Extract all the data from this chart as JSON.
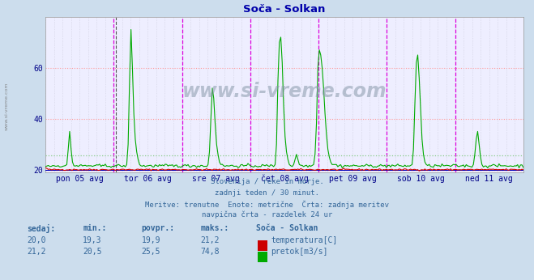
{
  "title": "Soča - Solkan",
  "bg_color": "#ccdded",
  "plot_bg_color": "#eeeeff",
  "grid_color_h": "#ff9999",
  "grid_color_v": "#ccccdd",
  "vline_color_magenta": "#dd00dd",
  "vline_color_black": "#555555",
  "tick_label_color": "#000088",
  "title_color": "#0000aa",
  "text_color": "#336699",
  "watermark_color": "#aabbcc",
  "temp_color": "#cc0000",
  "flow_color": "#00aa00",
  "temp_avg_color": "#ff8888",
  "flow_avg_color": "#88cc88",
  "ylim_min": 19.0,
  "ylim_max": 80.0,
  "yticks": [
    20,
    40,
    60
  ],
  "xlabel_labels": [
    "pon 05 avg",
    "tor 06 avg",
    "sre 07 avg",
    "čet 08 avg",
    "pet 09 avg",
    "sob 10 avg",
    "ned 11 avg"
  ],
  "n_points": 336,
  "subtitle_lines": [
    "Slovenija / reke in morje.",
    "zadnji teden / 30 minut.",
    "Meritve: trenutne  Enote: metrične  Črta: zadnja meritev",
    "navpična črta - razdelek 24 ur"
  ],
  "table_headers": [
    "sedaj:",
    "min.:",
    "povpr.:",
    "maks.:"
  ],
  "table_station": "Soča - Solkan",
  "temp_row": [
    "20,0",
    "19,3",
    "19,9",
    "21,2"
  ],
  "flow_row": [
    "21,2",
    "20,5",
    "25,5",
    "74,8"
  ],
  "temp_label": "temperatura[C]",
  "flow_label": "pretok[m3/s]"
}
